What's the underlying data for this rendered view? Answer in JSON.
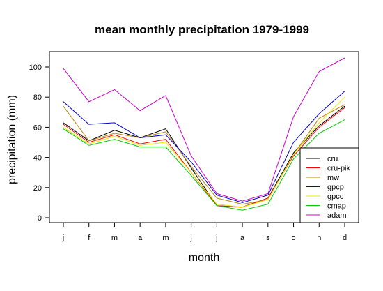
{
  "chart_data": {
    "type": "line",
    "title": "mean monthly precipitation 1979-1999",
    "xlabel": "month",
    "ylabel": "precipitation (mm)",
    "categories": [
      "j",
      "f",
      "m",
      "a",
      "m",
      "j",
      "j",
      "a",
      "s",
      "o",
      "n",
      "d"
    ],
    "yticks": [
      0,
      20,
      40,
      60,
      80,
      100
    ],
    "ylim": [
      -3,
      110
    ],
    "grid": false,
    "legend_position": "bottom-right",
    "series": [
      {
        "name": "cru",
        "color": "#000000",
        "values": [
          63,
          51,
          58,
          53,
          59,
          33,
          8,
          7,
          13,
          43,
          61,
          74
        ]
      },
      {
        "name": "cru-pik",
        "color": "#ff0000",
        "values": [
          62,
          50,
          55,
          49,
          52,
          30,
          8,
          7,
          13,
          41,
          60,
          73
        ]
      },
      {
        "name": "mw",
        "color": "#b8860b",
        "values": [
          74,
          51,
          56,
          53,
          57,
          34,
          13,
          9,
          12,
          42,
          66,
          75
        ]
      },
      {
        "name": "gpcp",
        "color": "#0000cc",
        "values": [
          77,
          62,
          63,
          53,
          55,
          37,
          15,
          10,
          15,
          50,
          69,
          84
        ]
      },
      {
        "name": "gpcc",
        "color": "#e8e800",
        "values": [
          60,
          49,
          54,
          48,
          50,
          30,
          9,
          7,
          12,
          42,
          63,
          80
        ]
      },
      {
        "name": "cmap",
        "color": "#00cc00",
        "values": [
          59,
          48,
          52,
          47,
          47,
          28,
          8,
          5,
          9,
          39,
          56,
          65
        ]
      },
      {
        "name": "adam",
        "color": "#cc00cc",
        "values": [
          99,
          77,
          85,
          71,
          81,
          41,
          16,
          11,
          16,
          67,
          97,
          106
        ]
      }
    ]
  }
}
